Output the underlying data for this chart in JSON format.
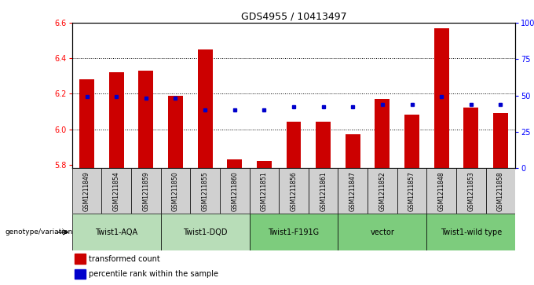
{
  "title": "GDS4955 / 10413497",
  "samples": [
    "GSM1211849",
    "GSM1211854",
    "GSM1211859",
    "GSM1211850",
    "GSM1211855",
    "GSM1211860",
    "GSM1211851",
    "GSM1211856",
    "GSM1211861",
    "GSM1211847",
    "GSM1211852",
    "GSM1211857",
    "GSM1211848",
    "GSM1211853",
    "GSM1211858"
  ],
  "bar_values": [
    6.28,
    6.32,
    6.33,
    6.19,
    6.45,
    5.83,
    5.82,
    6.04,
    6.04,
    5.97,
    6.17,
    6.08,
    6.57,
    6.12,
    6.09
  ],
  "percentile_values": [
    49,
    49,
    48,
    48,
    40,
    40,
    40,
    42,
    42,
    42,
    44,
    44,
    49,
    44,
    44
  ],
  "groups": [
    {
      "label": "Twist1-AQA",
      "indices": [
        0,
        1,
        2
      ],
      "color": "#b8ddb8"
    },
    {
      "label": "Twist1-DQD",
      "indices": [
        3,
        4,
        5
      ],
      "color": "#b8ddb8"
    },
    {
      "label": "Twist1-F191G",
      "indices": [
        6,
        7,
        8
      ],
      "color": "#7dcc7d"
    },
    {
      "label": "vector",
      "indices": [
        9,
        10,
        11
      ],
      "color": "#7dcc7d"
    },
    {
      "label": "Twist1-wild type",
      "indices": [
        12,
        13,
        14
      ],
      "color": "#7dcc7d"
    }
  ],
  "ylim_left": [
    5.78,
    6.6
  ],
  "ylim_right": [
    0,
    100
  ],
  "bar_color": "#cc0000",
  "dot_color": "#0000cc",
  "bar_bottom": 5.78,
  "yticks_left": [
    5.8,
    6.0,
    6.2,
    6.4,
    6.6
  ],
  "yticks_right": [
    0,
    25,
    50,
    75,
    100
  ],
  "ytick_labels_right": [
    "0",
    "25",
    "50",
    "75",
    "100%"
  ],
  "grid_values": [
    6.0,
    6.2,
    6.4
  ],
  "bg_color_samples": "#d0d0d0",
  "title_fontsize": 9,
  "tick_fontsize": 7,
  "sample_fontsize": 5.5,
  "group_fontsize": 7,
  "legend_fontsize": 7
}
